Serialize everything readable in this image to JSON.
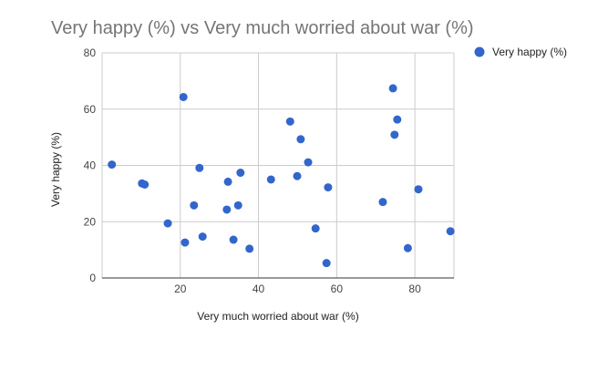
{
  "chart_data": {
    "type": "scatter",
    "title": "Very happy (%) vs Very much worried about war (%)",
    "xlabel": "Very much worried about war (%)",
    "ylabel": "Very happy (%)",
    "xlim": [
      0,
      90
    ],
    "ylim": [
      0,
      80
    ],
    "xticks": [
      20,
      40,
      60,
      80
    ],
    "yticks": [
      0,
      20,
      40,
      60,
      80
    ],
    "grid": true,
    "legend_position": "right",
    "series": [
      {
        "name": "Very happy (%)",
        "color": "#3366cc",
        "points": [
          [
            2.5,
            40.3
          ],
          [
            10.2,
            33.6
          ],
          [
            10.9,
            33.2
          ],
          [
            16.8,
            19.4
          ],
          [
            20.8,
            64.3
          ],
          [
            21.2,
            12.6
          ],
          [
            23.5,
            25.8
          ],
          [
            24.9,
            39.1
          ],
          [
            25.7,
            14.7
          ],
          [
            31.9,
            24.3
          ],
          [
            32.2,
            34.2
          ],
          [
            33.6,
            13.6
          ],
          [
            34.8,
            25.8
          ],
          [
            35.4,
            37.4
          ],
          [
            37.7,
            10.4
          ],
          [
            43.2,
            35.0
          ],
          [
            48.1,
            55.6
          ],
          [
            49.9,
            36.2
          ],
          [
            50.8,
            49.3
          ],
          [
            52.7,
            41.1
          ],
          [
            54.6,
            17.6
          ],
          [
            57.4,
            5.3
          ],
          [
            57.8,
            32.2
          ],
          [
            71.8,
            27.0
          ],
          [
            74.4,
            67.4
          ],
          [
            74.8,
            50.9
          ],
          [
            75.5,
            56.3
          ],
          [
            78.2,
            10.6
          ],
          [
            80.9,
            31.5
          ],
          [
            89.1,
            16.6
          ]
        ]
      }
    ]
  }
}
